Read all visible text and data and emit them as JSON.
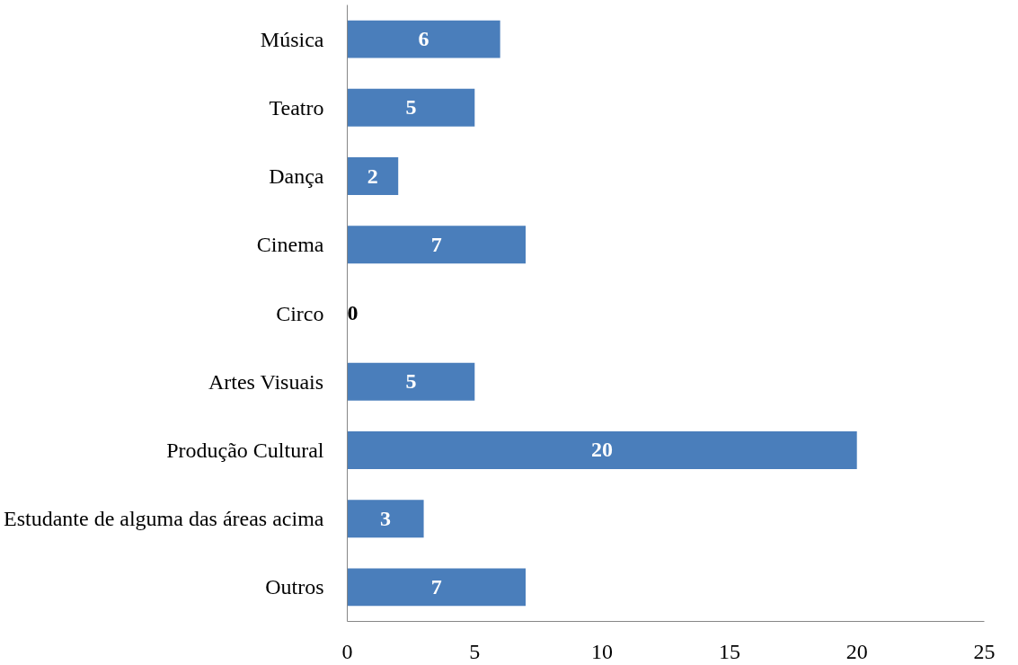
{
  "chart_data": {
    "type": "bar",
    "orientation": "horizontal",
    "categories": [
      "Música",
      "Teatro",
      "Dança",
      "Cinema",
      "Circo",
      "Artes Visuais",
      "Produção Cultural",
      "Estudante de alguma das áreas acima",
      "Outros"
    ],
    "values": [
      6,
      5,
      2,
      7,
      0,
      5,
      20,
      3,
      7
    ],
    "color": "#4a7ebb",
    "xlim": [
      0,
      25
    ],
    "xticks": [
      0,
      5,
      10,
      15,
      20,
      25
    ],
    "grid": false,
    "data_labels": true
  }
}
